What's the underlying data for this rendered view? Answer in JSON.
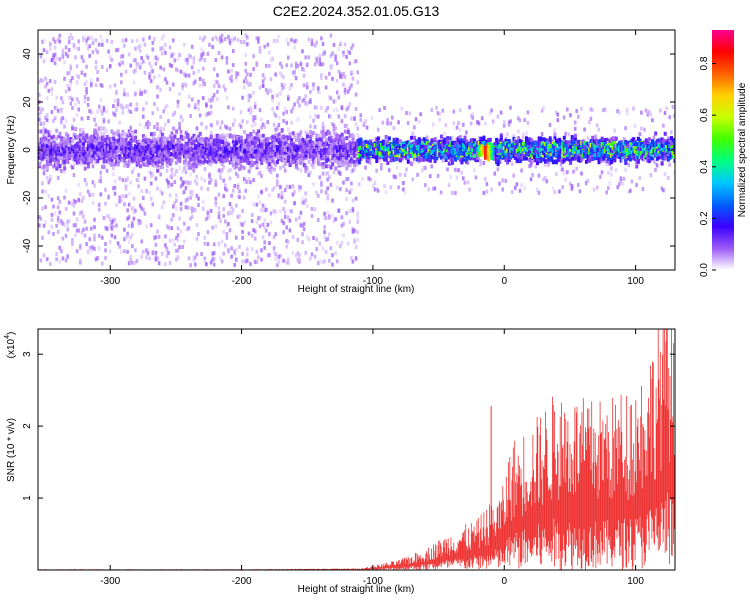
{
  "title": "C2E2.2024.352.01.05.G13",
  "chart_data": [
    {
      "type": "heatmap",
      "xlabel": "Height of straight line (km)",
      "ylabel": "Frequency (Hz)",
      "xlim": [
        -355,
        130
      ],
      "ylim": [
        -50,
        50
      ],
      "xticks": [
        -300,
        -200,
        -100,
        0,
        100
      ],
      "yticks": [
        -40,
        -20,
        0,
        20,
        40
      ],
      "colorbar": {
        "label": "Normalized spectral amplitude",
        "range": [
          0.0,
          0.93
        ],
        "ticks": [
          "0.0",
          "0.2",
          "0.4",
          "0.6",
          "0.8"
        ],
        "tick_values": [
          0.0,
          0.2,
          0.4,
          0.6,
          0.8
        ],
        "colors": [
          "#ffffff",
          "#9b59f5",
          "#3a00ff",
          "#0060ff",
          "#00c8ff",
          "#00ff80",
          "#40ff00",
          "#c8ff00",
          "#ffd000",
          "#ff6000",
          "#ff0000",
          "#ff0090"
        ]
      },
      "band": [
        {
          "x_from": -355,
          "x_to": -112,
          "core_halfwidth_hz": 9,
          "spread_halfwidth_hz": 48,
          "typical_amplitude": 0.15
        },
        {
          "x_from": -112,
          "x_to": 130,
          "core_halfwidth_hz": 6,
          "spread_halfwidth_hz": 18,
          "typical_amplitude": 0.3
        }
      ],
      "peak": {
        "x": -15,
        "frequency": -1,
        "amplitude": 0.85
      }
    },
    {
      "type": "area",
      "xlabel": "Height of straight line (km)",
      "ylabel": "SNR (10 * v/v)",
      "scale_label": "(x10",
      "scale_exponent": "4",
      "xlim": [
        -355,
        130
      ],
      "ylim": [
        0,
        3.35
      ],
      "xticks": [
        -300,
        -200,
        -100,
        0,
        100
      ],
      "yticks": [
        1,
        2,
        3
      ],
      "color": "#ee3333",
      "x": [
        -355,
        -300,
        -200,
        -110,
        -100,
        -80,
        -60,
        -40,
        -20,
        -10,
        -2,
        5,
        20,
        40,
        60,
        80,
        100,
        110,
        120,
        125,
        130
      ],
      "y": [
        0.01,
        0.01,
        0.01,
        0.02,
        0.05,
        0.12,
        0.25,
        0.45,
        0.6,
        0.8,
        0.9,
        1.5,
        1.7,
        2.1,
        2.0,
        2.0,
        2.2,
        2.5,
        3.1,
        3.3,
        2.6
      ]
    }
  ]
}
